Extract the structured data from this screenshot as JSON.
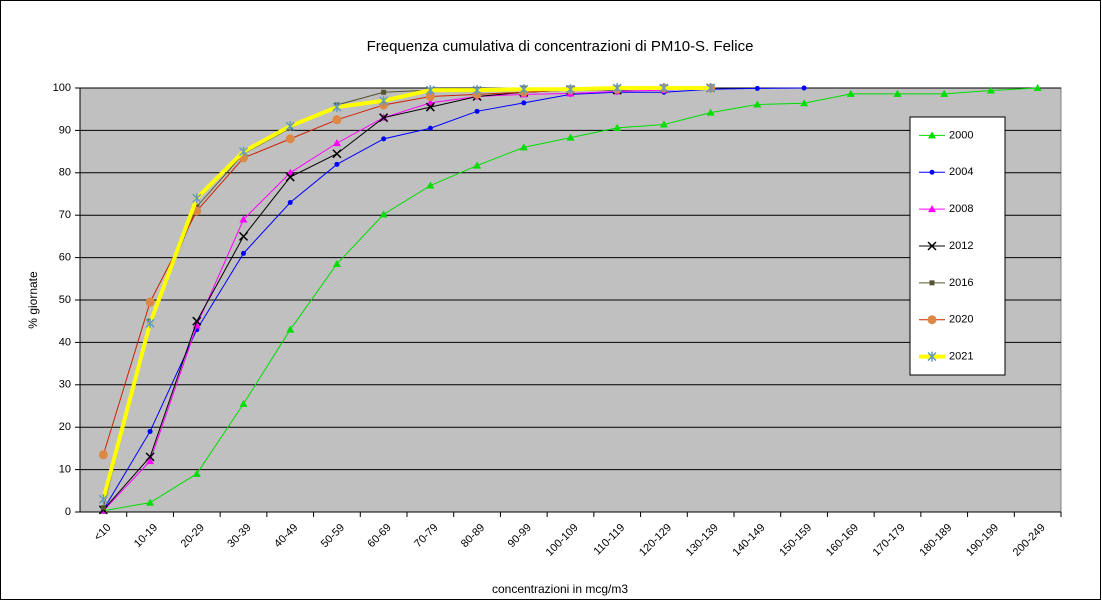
{
  "chart_data": {
    "type": "line",
    "title": "Frequenza cumulativa  di concentrazioni di PM10-S. Felice",
    "x_label": "concentrazioni in mcg/m3",
    "y_label": "% giornate",
    "categories": [
      "<10",
      "10-19",
      "20-29",
      "30-39",
      "40-49",
      "50-59",
      "60-69",
      "70-79",
      "80-89",
      "90-99",
      "100-109",
      "110-119",
      "120-129",
      "130-139",
      "140-149",
      "150-159",
      "160-169",
      "170-179",
      "180-189",
      "190-199",
      "200-249"
    ],
    "ylim": [
      0,
      100
    ],
    "yticks": [
      0,
      10,
      20,
      30,
      40,
      50,
      60,
      70,
      80,
      90,
      100
    ],
    "grid": true,
    "legend": "right",
    "series": [
      {
        "name": "2000",
        "color": "#00dd00",
        "marker": "triangle",
        "values": [
          0.3,
          2.2,
          9,
          25.5,
          43,
          58.5,
          70.2,
          77,
          81.7,
          86,
          88.3,
          90.6,
          91.4,
          94.2,
          96.1,
          96.4,
          98.6,
          98.6,
          98.6,
          99.4,
          100
        ]
      },
      {
        "name": "2004",
        "color": "#0000ff",
        "marker": "circle",
        "values": [
          0.5,
          19,
          43,
          61,
          73,
          82,
          88,
          90.5,
          94.5,
          96.5,
          98.5,
          99,
          99,
          99.7,
          99.9,
          100,
          null,
          null,
          null,
          null,
          null
        ]
      },
      {
        "name": "2008",
        "color": "#ff00ff",
        "marker": "triangle",
        "values": [
          0.3,
          12,
          44,
          69,
          80,
          87,
          93,
          96.5,
          98,
          98.5,
          98.7,
          99.2,
          99.5,
          100,
          null,
          null,
          null,
          null,
          null,
          null,
          null
        ]
      },
      {
        "name": "2012",
        "color": "#000000",
        "marker": "x",
        "values": [
          0.5,
          13,
          45,
          65,
          79,
          84.5,
          93,
          95.5,
          98,
          99,
          99.5,
          99.5,
          99.9,
          100,
          null,
          null,
          null,
          null,
          null,
          null,
          null
        ]
      },
      {
        "name": "2016",
        "color": "#555533",
        "marker": "square",
        "values": [
          1,
          45,
          72,
          84.5,
          90.5,
          96,
          99,
          99.5,
          99.7,
          100,
          100,
          100,
          100,
          100,
          null,
          null,
          null,
          null,
          null,
          null,
          null
        ]
      },
      {
        "name": "2020",
        "color": "#cc2200",
        "marker_color": "#dd8844",
        "marker": "circle",
        "values": [
          13.5,
          49.5,
          71,
          83.5,
          88,
          92.5,
          96,
          98,
          98.5,
          99,
          99.5,
          99.7,
          100,
          100,
          null,
          null,
          null,
          null,
          null,
          null,
          null
        ]
      },
      {
        "name": "2021",
        "color": "#ffff00",
        "marker_color": "#6699bb",
        "marker": "star",
        "line_width": 4,
        "values": [
          3,
          44.5,
          74,
          85,
          91,
          95.5,
          97,
          99.5,
          99.5,
          99.7,
          99.7,
          100,
          100,
          100,
          null,
          null,
          null,
          null,
          null,
          null,
          null
        ]
      }
    ]
  }
}
